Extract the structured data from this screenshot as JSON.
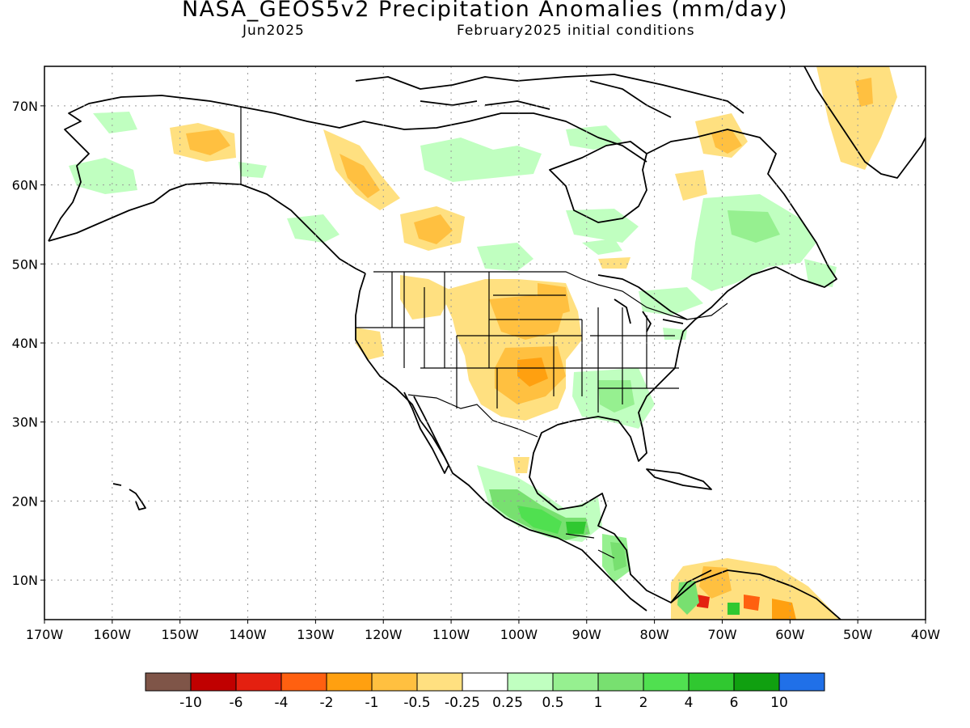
{
  "title": "NASA_GEOS5v2 Precipitation Anomalies (mm/day)",
  "subtitle_left": "Jun2025",
  "subtitle_right": "February2025 initial conditions",
  "map": {
    "lon_range": [
      -170,
      -40
    ],
    "lat_range": [
      5,
      75
    ],
    "lon_ticks": [
      "170W",
      "160W",
      "150W",
      "140W",
      "130W",
      "120W",
      "110W",
      "100W",
      "90W",
      "80W",
      "70W",
      "60W",
      "50W",
      "40W"
    ],
    "lat_ticks": [
      "10N",
      "20N",
      "30N",
      "40N",
      "50N",
      "60N",
      "70N"
    ]
  },
  "colorbar": {
    "colors": [
      "#7f5548",
      "#c00000",
      "#e42010",
      "#ff6010",
      "#ffa010",
      "#ffc040",
      "#ffe080",
      "#ffffff",
      "#c0ffc0",
      "#96f090",
      "#78e070",
      "#50e050",
      "#30c830",
      "#10a010",
      "#2070e8"
    ],
    "labels": [
      "-10",
      "-6",
      "-4",
      "-2",
      "-1",
      "-0.5",
      "-0.25",
      "0.25",
      "0.5",
      "1",
      "2",
      "4",
      "6",
      "10"
    ]
  }
}
